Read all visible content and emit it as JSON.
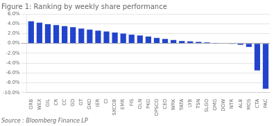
{
  "chart_data": {
    "type": "bar",
    "title": "Figure 1: Ranking by weekly share performance",
    "source": "Source : Bloomberg Finance LP",
    "categories": [
      "GRB",
      "WEX",
      "GIL",
      "CR",
      "CC",
      "GD",
      "GT",
      "GKO",
      "IER",
      "CI",
      "SXCOB",
      "EMR",
      "FIS",
      "OLN",
      "PKG",
      "OPSCO",
      "CEO",
      "WRK",
      "TATA",
      "LYB",
      "TSN",
      "SLGO",
      "OMG",
      "DOW",
      "NTR",
      "ALB",
      "MOS",
      "CTA",
      "PAC"
    ],
    "values": [
      4.5,
      4.2,
      3.9,
      3.7,
      3.5,
      3.3,
      3.0,
      2.8,
      2.6,
      2.4,
      2.2,
      2.0,
      1.8,
      1.6,
      1.4,
      1.1,
      0.9,
      0.7,
      0.5,
      0.4,
      0.3,
      0.2,
      0.1,
      0.05,
      -0.1,
      -0.3,
      -0.7,
      -5.5,
      -9.2
    ],
    "color": "#2244cc",
    "ylim": [
      -10.0,
      6.0
    ],
    "yticks": [
      {
        "value": 6.0,
        "label": "6.0%"
      },
      {
        "value": 4.0,
        "label": "4.0%"
      },
      {
        "value": 2.0,
        "label": "2.0%"
      },
      {
        "value": 0.0,
        "label": "0.0%"
      },
      {
        "value": -2.0,
        "label": "-2.0%"
      },
      {
        "value": -4.0,
        "label": "-4.0%"
      },
      {
        "value": -6.0,
        "label": "-6.0%"
      },
      {
        "value": -8.0,
        "label": "-8.0%"
      },
      {
        "value": -10.0,
        "label": "-10.0%"
      }
    ],
    "grid": true
  }
}
